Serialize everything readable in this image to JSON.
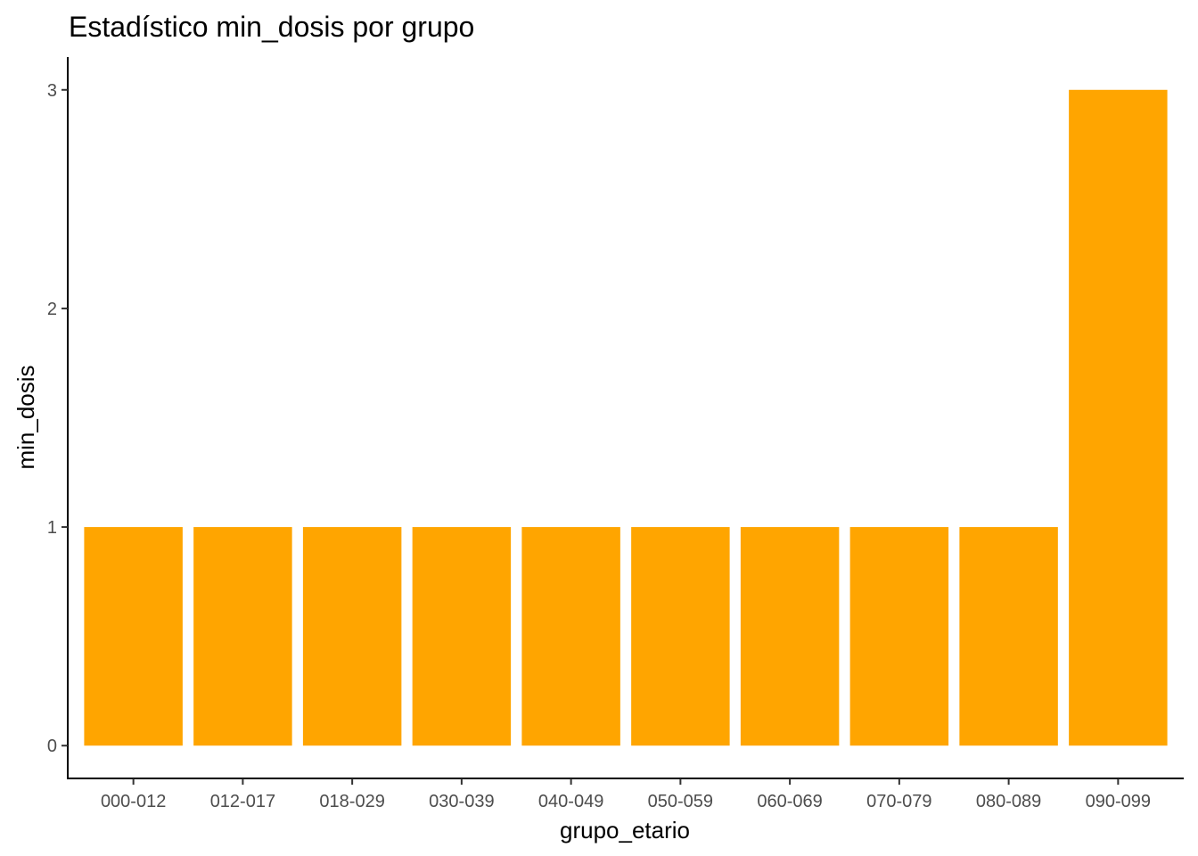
{
  "chart_data": {
    "type": "bar",
    "title": "Estadístico min_dosis por grupo",
    "xlabel": "grupo_etario",
    "ylabel": "min_dosis",
    "categories": [
      "000-012",
      "012-017",
      "018-029",
      "030-039",
      "040-049",
      "050-059",
      "060-069",
      "070-079",
      "080-089",
      "090-099"
    ],
    "values": [
      1,
      1,
      1,
      1,
      1,
      1,
      1,
      1,
      1,
      3
    ],
    "yticks": [
      0,
      1,
      2,
      3
    ],
    "ylim": [
      -0.15,
      3.15
    ],
    "grid": false,
    "legend": "none",
    "bar_color": "#FFA500"
  }
}
